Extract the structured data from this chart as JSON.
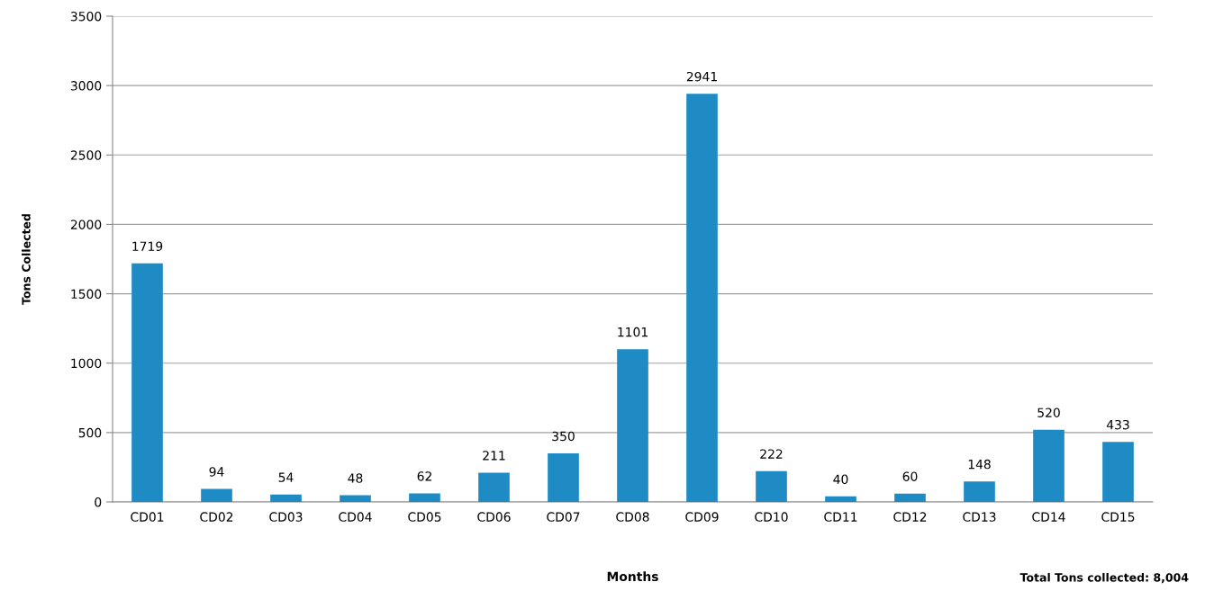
{
  "chart_data": {
    "type": "bar",
    "xlabel": "Months",
    "ylabel": "Tons Collected",
    "categories": [
      "CD01",
      "CD02",
      "CD03",
      "CD04",
      "CD05",
      "CD06",
      "CD07",
      "CD08",
      "CD09",
      "CD10",
      "CD11",
      "CD12",
      "CD13",
      "CD14",
      "CD15"
    ],
    "values": [
      1719,
      94,
      54,
      48,
      62,
      211,
      350,
      1101,
      2941,
      222,
      40,
      60,
      148,
      520,
      433
    ],
    "color": "#1f8bc4",
    "ylim": [
      0,
      3500
    ],
    "yticks": [
      0,
      500,
      1000,
      1500,
      2000,
      2500,
      3000,
      3500
    ],
    "grid": "y",
    "data_labels": true,
    "annotations": [
      "Total Tons collected: 8,004"
    ]
  }
}
